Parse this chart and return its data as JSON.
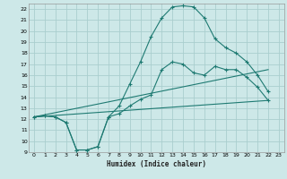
{
  "xlabel": "Humidex (Indice chaleur)",
  "bg_color": "#cde8e8",
  "grid_color": "#aacece",
  "line_color": "#1e7a72",
  "xlim": [
    -0.5,
    23.5
  ],
  "ylim": [
    9,
    22.5
  ],
  "xticks": [
    0,
    1,
    2,
    3,
    4,
    5,
    6,
    7,
    8,
    9,
    10,
    11,
    12,
    13,
    14,
    15,
    16,
    17,
    18,
    19,
    20,
    21,
    22,
    23
  ],
  "yticks": [
    9,
    10,
    11,
    12,
    13,
    14,
    15,
    16,
    17,
    18,
    19,
    20,
    21,
    22
  ],
  "curve_arch_x": [
    0,
    1,
    2,
    3,
    4,
    5,
    6,
    7,
    8,
    9,
    10,
    11,
    12,
    13,
    14,
    15,
    16,
    17,
    18,
    19,
    20,
    21,
    22
  ],
  "curve_arch_y": [
    12.2,
    12.3,
    12.2,
    11.7,
    9.2,
    9.2,
    9.5,
    12.2,
    13.2,
    15.2,
    17.2,
    19.5,
    21.2,
    22.2,
    22.3,
    22.2,
    21.2,
    19.3,
    18.5,
    18.0,
    17.2,
    16.0,
    14.5
  ],
  "curve_lower_x": [
    0,
    1,
    2,
    3,
    4,
    5,
    6,
    7,
    8,
    9,
    10,
    11,
    12,
    13,
    14,
    15,
    16,
    17,
    18,
    19,
    20,
    21,
    22
  ],
  "curve_lower_y": [
    12.2,
    12.3,
    12.2,
    11.7,
    9.2,
    9.2,
    9.5,
    12.2,
    12.5,
    13.2,
    13.8,
    14.2,
    16.5,
    17.2,
    17.0,
    16.2,
    16.0,
    16.8,
    16.5,
    16.5,
    15.8,
    14.9,
    13.7
  ],
  "line1_x": [
    0,
    22
  ],
  "line1_y": [
    12.2,
    13.7
  ],
  "line2_x": [
    0,
    22
  ],
  "line2_y": [
    12.2,
    16.5
  ]
}
